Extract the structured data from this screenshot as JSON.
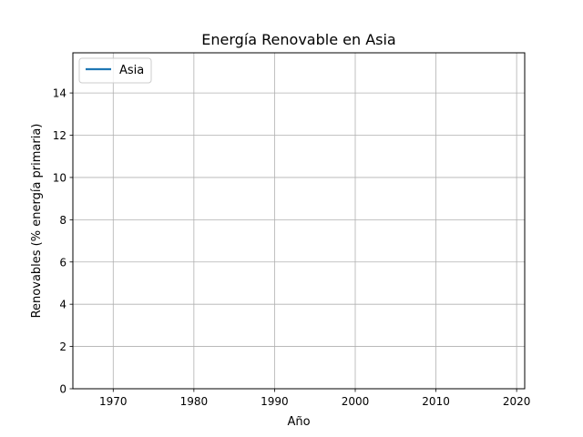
{
  "chart_data": {
    "type": "line",
    "title": "Energía Renovable en Asia",
    "xlabel": "Año",
    "ylabel": "Renovables (% energía primaria)",
    "xlim": [
      1965,
      2021
    ],
    "ylim": [
      0,
      15.9
    ],
    "x_ticks": [
      1970,
      1980,
      1990,
      2000,
      2010,
      2020
    ],
    "y_ticks": [
      0,
      2,
      4,
      6,
      8,
      10,
      12,
      14
    ],
    "grid": true,
    "legend_position": "top-left",
    "series": [
      {
        "name": "Asia",
        "color": "#1f77b4",
        "x": [],
        "y": []
      }
    ]
  }
}
